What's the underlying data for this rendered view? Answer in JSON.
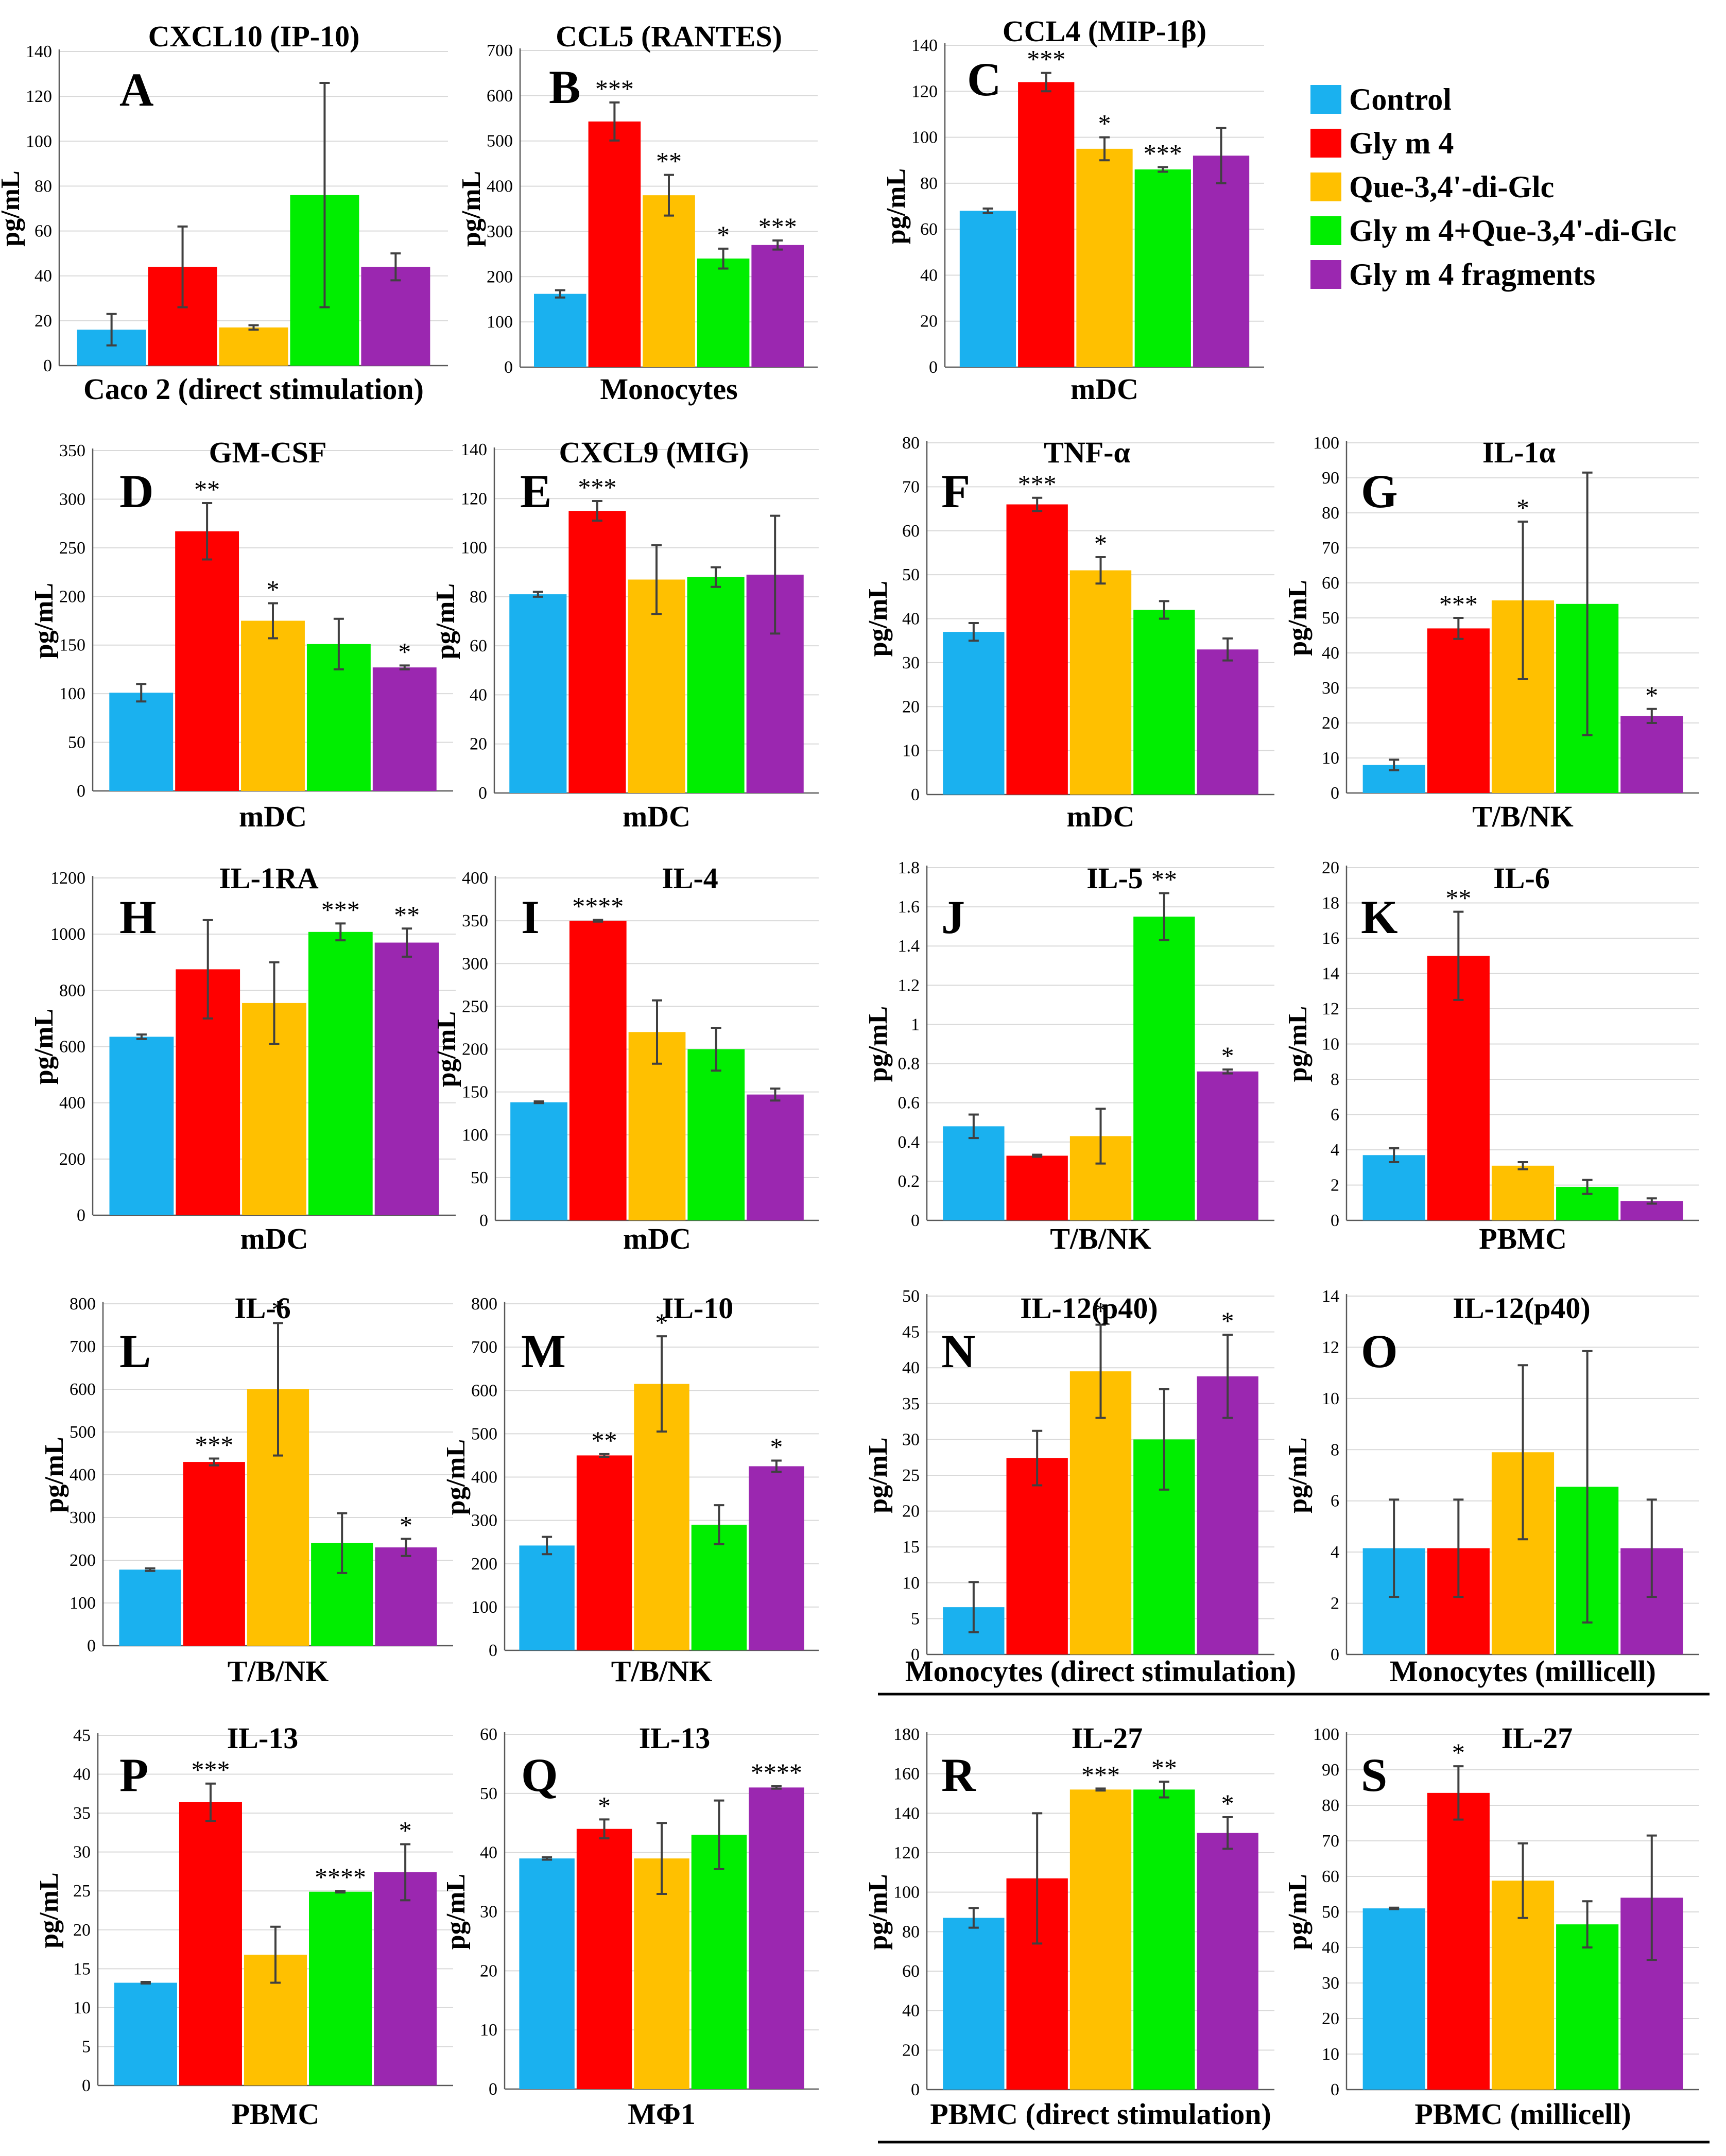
{
  "y_axis_label": "pg/mL",
  "colors": {
    "Control": "#1ab1ef",
    "Gly m 4": "#ff0000",
    "Que-3,4'-di-Glc": "#ffc000",
    "Gly m 4+Que-3,4'-di-Glc": "#00ee00",
    "Gly m 4 fragments": "#9b27b0"
  },
  "legend": [
    "Control",
    "Gly m 4",
    "Que-3,4'-di-Glc",
    "Gly m 4+Que-3,4'-di-Glc",
    "Gly m 4 fragments"
  ],
  "chart_data": [
    {
      "type": "bar",
      "letter": "A",
      "title": "CXCL10 (IP-10)",
      "xlabel": "Caco 2 (direct stimulation)",
      "ylabel": "pg/mL",
      "ylim": [
        0,
        140
      ],
      "ticks": [
        0,
        20,
        40,
        60,
        80,
        100,
        120,
        140
      ],
      "categories": [
        "Control",
        "Gly m 4",
        "Que-3,4'-di-Glc",
        "Gly m 4+Que-3,4'-di-Glc",
        "Gly m 4 fragments"
      ],
      "values": [
        16,
        44,
        17,
        76,
        44
      ],
      "errors": [
        7,
        18,
        1,
        50,
        6
      ],
      "sig": [
        "",
        "",
        "",
        "",
        ""
      ]
    },
    {
      "type": "bar",
      "letter": "B",
      "title": "CCL5 (RANTES)",
      "xlabel": "Monocytes",
      "ylabel": "pg/mL",
      "ylim": [
        0,
        700
      ],
      "ticks": [
        0,
        100,
        200,
        300,
        400,
        500,
        600,
        700
      ],
      "categories": [
        "Control",
        "Gly m 4",
        "Que-3,4'-di-Glc",
        "Gly m 4+Que-3,4'-di-Glc",
        "Gly m 4 fragments"
      ],
      "values": [
        162,
        543,
        380,
        240,
        270
      ],
      "errors": [
        8,
        42,
        45,
        22,
        10
      ],
      "sig": [
        "",
        "***",
        "**",
        "*",
        "***"
      ]
    },
    {
      "type": "bar",
      "letter": "C",
      "title": "CCL4 (MIP-1β)",
      "xlabel": "mDC",
      "ylabel": "pg/mL",
      "ylim": [
        0,
        140
      ],
      "ticks": [
        0,
        20,
        40,
        60,
        80,
        100,
        120,
        140
      ],
      "categories": [
        "Control",
        "Gly m 4",
        "Que-3,4'-di-Glc",
        "Gly m 4+Que-3,4'-di-Glc",
        "Gly m 4 fragments"
      ],
      "values": [
        68,
        124,
        95,
        86,
        92
      ],
      "errors": [
        1,
        4,
        5,
        1,
        12
      ],
      "sig": [
        "",
        "***",
        "*",
        "***",
        ""
      ]
    },
    {
      "type": "bar",
      "letter": "D",
      "title": "GM-CSF",
      "xlabel": "mDC",
      "ylabel": "pg/mL",
      "ylim": [
        0,
        350
      ],
      "ticks": [
        0,
        50,
        100,
        150,
        200,
        250,
        300,
        350
      ],
      "categories": [
        "Control",
        "Gly m 4",
        "Que-3,4'-di-Glc",
        "Gly m 4+Que-3,4'-di-Glc",
        "Gly m 4 fragments"
      ],
      "values": [
        101,
        267,
        175,
        151,
        127
      ],
      "errors": [
        9,
        29,
        18,
        26,
        2
      ],
      "sig": [
        "",
        "**",
        "*",
        "",
        "*"
      ]
    },
    {
      "type": "bar",
      "letter": "E",
      "title": "CXCL9 (MIG)",
      "xlabel": "mDC",
      "ylabel": "pg/mL",
      "ylim": [
        0,
        140
      ],
      "ticks": [
        0,
        20,
        40,
        60,
        80,
        100,
        120,
        140
      ],
      "categories": [
        "Control",
        "Gly m 4",
        "Que-3,4'-di-Glc",
        "Gly m 4+Que-3,4'-di-Glc",
        "Gly m 4 fragments"
      ],
      "values": [
        81,
        115,
        87,
        88,
        89
      ],
      "errors": [
        1,
        4,
        14,
        4,
        24
      ],
      "sig": [
        "",
        "***",
        "",
        "",
        ""
      ]
    },
    {
      "type": "bar",
      "letter": "F",
      "title": "TNF-α",
      "xlabel": "mDC",
      "ylabel": "pg/mL",
      "ylim": [
        0,
        80
      ],
      "ticks": [
        0,
        10,
        20,
        30,
        40,
        50,
        60,
        70,
        80
      ],
      "categories": [
        "Control",
        "Gly m 4",
        "Que-3,4'-di-Glc",
        "Gly m 4+Que-3,4'-di-Glc",
        "Gly m 4 fragments"
      ],
      "values": [
        37,
        66,
        51,
        42,
        33
      ],
      "errors": [
        2,
        1.5,
        3,
        2,
        2.5
      ],
      "sig": [
        "",
        "***",
        "*",
        "",
        ""
      ]
    },
    {
      "type": "bar",
      "letter": "G",
      "title": "IL-1α",
      "xlabel": "T/B/NK",
      "ylabel": "pg/mL",
      "ylim": [
        0,
        100
      ],
      "ticks": [
        0,
        10,
        20,
        30,
        40,
        50,
        60,
        70,
        80,
        90,
        100
      ],
      "categories": [
        "Control",
        "Gly m 4",
        "Que-3,4'-di-Glc",
        "Gly m 4+Que-3,4'-di-Glc",
        "Gly m 4 fragments"
      ],
      "values": [
        8,
        47,
        55,
        54,
        22
      ],
      "errors": [
        1.5,
        3,
        22.5,
        37.5,
        2
      ],
      "sig": [
        "",
        "***",
        "*",
        "",
        "*"
      ]
    },
    {
      "type": "bar",
      "letter": "H",
      "title": "IL-1RA",
      "xlabel": "mDC",
      "ylabel": "pg/mL",
      "ylim": [
        0,
        1200
      ],
      "ticks": [
        0,
        200,
        400,
        600,
        800,
        1000,
        1200
      ],
      "categories": [
        "Control",
        "Gly m 4",
        "Que-3,4'-di-Glc",
        "Gly m 4+Que-3,4'-di-Glc",
        "Gly m 4 fragments"
      ],
      "values": [
        635,
        875,
        755,
        1008,
        970
      ],
      "errors": [
        8,
        175,
        145,
        30,
        50
      ],
      "sig": [
        "",
        "",
        "",
        "***",
        "**"
      ]
    },
    {
      "type": "bar",
      "letter": "I",
      "title": "IL-4",
      "xlabel": "mDC",
      "ylabel": "pg/mL",
      "ylim": [
        0,
        400
      ],
      "ticks": [
        0,
        50,
        100,
        150,
        200,
        250,
        300,
        350,
        400
      ],
      "categories": [
        "Control",
        "Gly m 4",
        "Que-3,4'-di-Glc",
        "Gly m 4+Que-3,4'-di-Glc",
        "Gly m 4 fragments"
      ],
      "values": [
        138,
        350,
        220,
        200,
        147
      ],
      "errors": [
        1,
        1,
        37,
        25,
        7
      ],
      "sig": [
        "",
        "****",
        "",
        "",
        ""
      ]
    },
    {
      "type": "bar",
      "letter": "J",
      "title": "IL-5",
      "xlabel": "T/B/NK",
      "ylabel": "pg/mL",
      "ylim": [
        0,
        1.8
      ],
      "ticks": [
        0,
        0.2,
        0.4,
        0.6,
        0.8,
        1,
        1.2,
        1.4,
        1.6,
        1.8
      ],
      "categories": [
        "Control",
        "Gly m 4",
        "Que-3,4'-di-Glc",
        "Gly m 4+Que-3,4'-di-Glc",
        "Gly m 4 fragments"
      ],
      "values": [
        0.48,
        0.33,
        0.43,
        1.55,
        0.76
      ],
      "errors": [
        0.06,
        0.005,
        0.14,
        0.12,
        0.01
      ],
      "sig": [
        "",
        "",
        "",
        "**",
        "*"
      ]
    },
    {
      "type": "bar",
      "letter": "K",
      "title": "IL-6",
      "xlabel": "PBMC",
      "ylabel": "pg/mL",
      "ylim": [
        0,
        20
      ],
      "ticks": [
        0,
        2,
        4,
        6,
        8,
        10,
        12,
        14,
        16,
        18,
        20
      ],
      "categories": [
        "Control",
        "Gly m 4",
        "Que-3,4'-di-Glc",
        "Gly m 4+Que-3,4'-di-Glc",
        "Gly m 4 fragments"
      ],
      "values": [
        3.7,
        15,
        3.1,
        1.9,
        1.1
      ],
      "errors": [
        0.4,
        2.5,
        0.2,
        0.4,
        0.15
      ],
      "sig": [
        "",
        "**",
        "",
        "",
        ""
      ]
    },
    {
      "type": "bar",
      "letter": "L",
      "title": "IL-6",
      "xlabel": "T/B/NK",
      "ylabel": "pg/mL",
      "ylim": [
        0,
        800
      ],
      "ticks": [
        0,
        100,
        200,
        300,
        400,
        500,
        600,
        700,
        800
      ],
      "categories": [
        "Control",
        "Gly m 4",
        "Que-3,4'-di-Glc",
        "Gly m 4+Que-3,4'-di-Glc",
        "Gly m 4 fragments"
      ],
      "values": [
        178,
        430,
        600,
        240,
        230
      ],
      "errors": [
        3,
        8,
        155,
        70,
        20
      ],
      "sig": [
        "",
        "***",
        "*",
        "",
        "*"
      ]
    },
    {
      "type": "bar",
      "letter": "M",
      "title": "IL-10",
      "xlabel": "T/B/NK",
      "ylabel": "pg/mL",
      "ylim": [
        0,
        800
      ],
      "ticks": [
        0,
        100,
        200,
        300,
        400,
        500,
        600,
        700,
        800
      ],
      "categories": [
        "Control",
        "Gly m 4",
        "Que-3,4'-di-Glc",
        "Gly m 4+Que-3,4'-di-Glc",
        "Gly m 4 fragments"
      ],
      "values": [
        242,
        450,
        615,
        290,
        425
      ],
      "errors": [
        20,
        3,
        110,
        45,
        13
      ],
      "sig": [
        "",
        "**",
        "*",
        "",
        "*"
      ]
    },
    {
      "type": "bar",
      "letter": "N",
      "title": "IL-12(p40)",
      "xlabel": "Monocytes (direct stimulation)",
      "ylabel": "pg/mL",
      "ylim": [
        0,
        50
      ],
      "ticks": [
        0,
        5,
        10,
        15,
        20,
        25,
        30,
        35,
        40,
        45,
        50
      ],
      "categories": [
        "Control",
        "Gly m 4",
        "Que-3,4'-di-Glc",
        "Gly m 4+Que-3,4'-di-Glc",
        "Gly m 4 fragments"
      ],
      "values": [
        6.6,
        27.4,
        39.5,
        30,
        38.8
      ],
      "errors": [
        3.5,
        3.8,
        6.5,
        7,
        5.8
      ],
      "sig": [
        "",
        "",
        "*",
        "",
        "*"
      ]
    },
    {
      "type": "bar",
      "letter": "O",
      "title": "IL-12(p40)",
      "xlabel": "Monocytes (millicell)",
      "ylabel": "pg/mL",
      "ylim": [
        0,
        14
      ],
      "ticks": [
        0,
        2,
        4,
        6,
        8,
        10,
        12,
        14
      ],
      "categories": [
        "Control",
        "Gly m 4",
        "Que-3,4'-di-Glc",
        "Gly m 4+Que-3,4'-di-Glc",
        "Gly m 4 fragments"
      ],
      "values": [
        4.15,
        4.15,
        7.9,
        6.55,
        4.15
      ],
      "errors": [
        1.9,
        1.9,
        3.4,
        5.3,
        1.9
      ],
      "sig": [
        "",
        "",
        "",
        "",
        ""
      ]
    },
    {
      "type": "bar",
      "letter": "P",
      "title": "IL-13",
      "xlabel": "PBMC",
      "ylabel": "pg/mL",
      "ylim": [
        0,
        45
      ],
      "ticks": [
        0,
        5,
        10,
        15,
        20,
        25,
        30,
        35,
        40,
        45
      ],
      "categories": [
        "Control",
        "Gly m 4",
        "Que-3,4'-di-Glc",
        "Gly m 4+Que-3,4'-di-Glc",
        "Gly m 4 fragments"
      ],
      "values": [
        13.2,
        36.4,
        16.8,
        24.9,
        27.4
      ],
      "errors": [
        0.1,
        2.4,
        3.6,
        0.1,
        3.6
      ],
      "sig": [
        "",
        "***",
        "",
        "****",
        "*"
      ]
    },
    {
      "type": "bar",
      "letter": "Q",
      "title": "IL-13",
      "xlabel": "MΦ1",
      "ylabel": "pg/mL",
      "ylim": [
        0,
        60
      ],
      "ticks": [
        0,
        10,
        20,
        30,
        40,
        50,
        60
      ],
      "categories": [
        "Control",
        "Gly m 4",
        "Que-3,4'-di-Glc",
        "Gly m 4+Que-3,4'-di-Glc",
        "Gly m 4 fragments"
      ],
      "values": [
        39,
        44,
        39,
        43,
        51
      ],
      "errors": [
        0.2,
        1.6,
        6,
        5.8,
        0.2
      ],
      "sig": [
        "",
        "*",
        "",
        "",
        "****"
      ]
    },
    {
      "type": "bar",
      "letter": "R",
      "title": "IL-27",
      "xlabel": "PBMC (direct stimulation)",
      "ylabel": "pg/mL",
      "ylim": [
        0,
        180
      ],
      "ticks": [
        0,
        20,
        40,
        60,
        80,
        100,
        120,
        140,
        160,
        180
      ],
      "categories": [
        "Control",
        "Gly m 4",
        "Que-3,4'-di-Glc",
        "Gly m 4+Que-3,4'-di-Glc",
        "Gly m 4 fragments"
      ],
      "values": [
        87,
        107,
        152,
        152,
        130
      ],
      "errors": [
        5,
        33,
        0.5,
        4,
        8
      ],
      "sig": [
        "",
        "",
        "***",
        "**",
        "*"
      ]
    },
    {
      "type": "bar",
      "letter": "S",
      "title": "IL-27",
      "xlabel": "PBMC (millicell)",
      "ylabel": "pg/mL",
      "ylim": [
        0,
        100
      ],
      "ticks": [
        0,
        10,
        20,
        30,
        40,
        50,
        60,
        70,
        80,
        90,
        100
      ],
      "categories": [
        "Control",
        "Gly m 4",
        "Que-3,4'-di-Glc",
        "Gly m 4+Que-3,4'-di-Glc",
        "Gly m 4 fragments"
      ],
      "values": [
        51,
        83.5,
        58.8,
        46.5,
        54
      ],
      "errors": [
        0.2,
        7.5,
        10.5,
        6.5,
        17.5
      ],
      "sig": [
        "",
        "*",
        "",
        "",
        ""
      ]
    }
  ]
}
